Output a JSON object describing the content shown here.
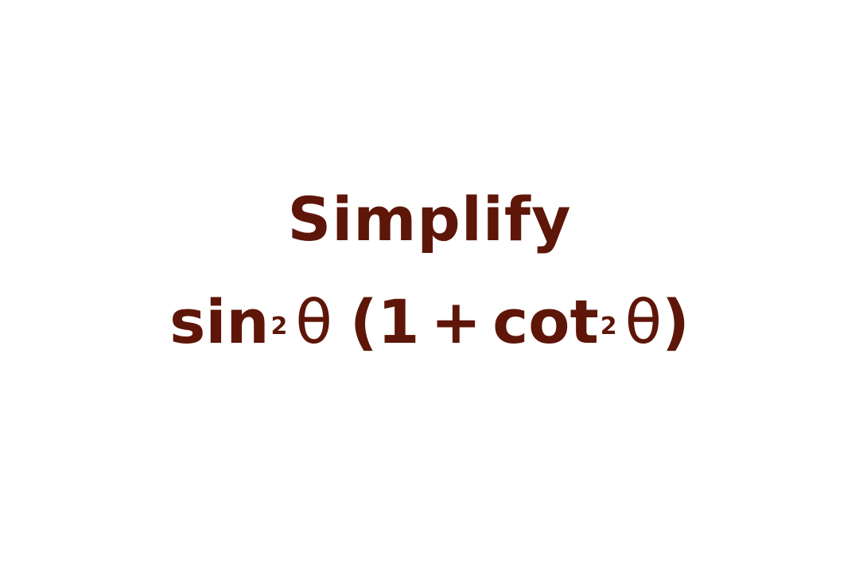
{
  "title": "Simplify",
  "expression": {
    "func1": "sin",
    "exp1": "2",
    "theta1": "θ",
    "open_paren": "(",
    "one": "1",
    "plus": "+",
    "func2": "cot",
    "exp2": "2",
    "theta2": "θ",
    "close_paren": ")"
  },
  "colors": {
    "text": "#5e1608",
    "background": "#ffffff"
  }
}
